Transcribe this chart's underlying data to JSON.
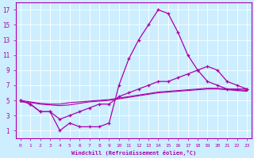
{
  "xlabel": "Windchill (Refroidissement éolien,°C)",
  "bg_color": "#cceeff",
  "line_color": "#aa00aa",
  "grid_color": "#aadddd",
  "xlim": [
    -0.5,
    23.5
  ],
  "ylim": [
    0,
    18
  ],
  "xticks": [
    0,
    1,
    2,
    3,
    4,
    5,
    6,
    7,
    8,
    9,
    10,
    11,
    12,
    13,
    14,
    15,
    16,
    17,
    18,
    19,
    20,
    21,
    22,
    23
  ],
  "yticks": [
    1,
    3,
    5,
    7,
    9,
    11,
    13,
    15,
    17
  ],
  "line1_x": [
    0,
    1,
    2,
    3,
    4,
    5,
    6,
    7,
    8,
    9,
    10,
    11,
    12,
    13,
    14,
    15,
    16,
    17,
    18,
    19,
    20,
    21,
    22,
    23
  ],
  "line1_y": [
    5.0,
    4.5,
    3.5,
    3.5,
    1.0,
    2.0,
    1.5,
    1.5,
    1.5,
    2.0,
    7.0,
    10.5,
    13.0,
    15.0,
    17.0,
    16.5,
    14.0,
    11.0,
    9.0,
    7.5,
    7.0,
    6.5,
    6.5,
    6.5
  ],
  "line2_x": [
    0,
    1,
    2,
    3,
    4,
    5,
    6,
    7,
    8,
    9,
    10,
    11,
    12,
    13,
    14,
    15,
    16,
    17,
    18,
    19,
    20,
    21,
    22,
    23
  ],
  "line2_y": [
    5.0,
    4.5,
    3.5,
    3.5,
    2.5,
    3.0,
    3.5,
    4.0,
    4.5,
    4.5,
    5.5,
    6.0,
    6.5,
    7.0,
    7.5,
    7.5,
    8.0,
    8.5,
    9.0,
    9.5,
    9.0,
    7.5,
    7.0,
    6.5
  ],
  "line3_x": [
    0,
    1,
    2,
    3,
    4,
    5,
    6,
    7,
    8,
    9,
    10,
    11,
    12,
    13,
    14,
    15,
    16,
    17,
    18,
    19,
    20,
    21,
    22,
    23
  ],
  "line3_y": [
    5.0,
    4.8,
    4.6,
    4.5,
    4.5,
    4.7,
    4.8,
    4.9,
    5.0,
    5.1,
    5.3,
    5.5,
    5.7,
    5.9,
    6.1,
    6.2,
    6.3,
    6.4,
    6.5,
    6.6,
    6.6,
    6.5,
    6.4,
    6.3
  ],
  "line4_x": [
    0,
    1,
    2,
    3,
    4,
    5,
    6,
    7,
    8,
    9,
    10,
    11,
    12,
    13,
    14,
    15,
    16,
    17,
    18,
    19,
    20,
    21,
    22,
    23
  ],
  "line4_y": [
    4.8,
    4.7,
    4.5,
    4.4,
    4.3,
    4.4,
    4.6,
    4.8,
    4.9,
    5.0,
    5.2,
    5.4,
    5.6,
    5.8,
    6.0,
    6.1,
    6.2,
    6.3,
    6.4,
    6.5,
    6.5,
    6.4,
    6.3,
    6.2
  ]
}
